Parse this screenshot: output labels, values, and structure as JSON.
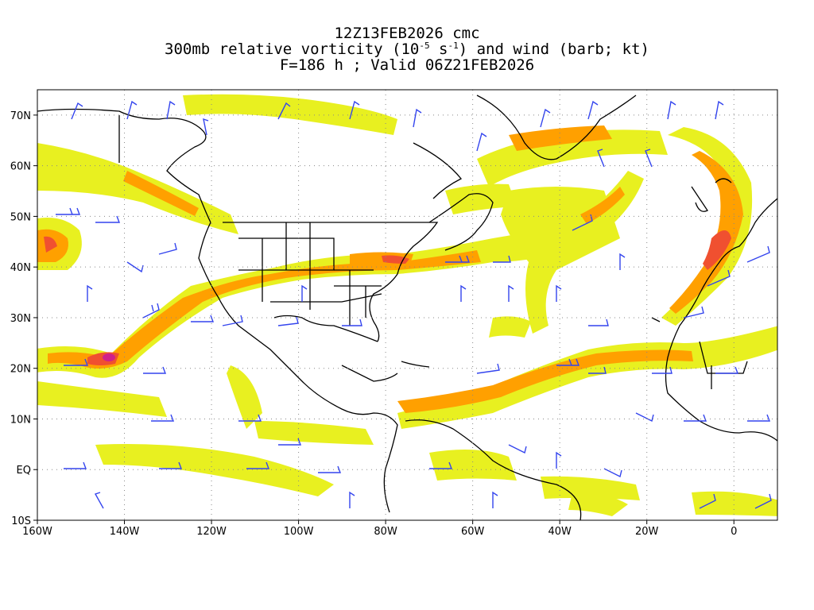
{
  "title": {
    "line1": "12Z13FEB2026 cmc",
    "line2_prefix": "300mb relative vorticity (10",
    "line2_exp1": "-5",
    "line2_mid": " s",
    "line2_exp2": "-1",
    "line2_suffix": ") and wind (barb; kt)",
    "line3": "F=186 h ; Valid 06Z21FEB2026"
  },
  "map": {
    "projection": "cylindrical-equidistant",
    "lon_range": [
      -160,
      10
    ],
    "lat_range": [
      -10,
      75
    ],
    "gridlines": "dotted",
    "lat_labels": [
      "70N",
      "60N",
      "50N",
      "40N",
      "30N",
      "20N",
      "10N",
      "EQ",
      "10S"
    ],
    "lat_values": [
      70,
      60,
      50,
      40,
      30,
      20,
      10,
      0,
      -10
    ],
    "lon_labels": [
      "160W",
      "140W",
      "120W",
      "100W",
      "80W",
      "60W",
      "40W",
      "20W",
      "0"
    ],
    "lon_values": [
      -160,
      -140,
      -120,
      -100,
      -80,
      -60,
      -40,
      -20,
      0
    ],
    "colors": {
      "coast": "#000000",
      "barb": "#3344ee",
      "shade_levels": [
        "#e8f020",
        "#ffd000",
        "#ffa000",
        "#ff7c20",
        "#f05030",
        "#e23060",
        "#d0208a"
      ]
    }
  }
}
